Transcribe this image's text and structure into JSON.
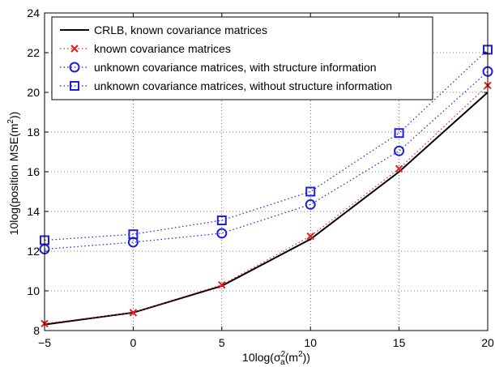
{
  "chart_data": {
    "type": "line",
    "x_label": "10log(σ",
    "x_label_sup": "2",
    "x_label_sub": "a",
    "x_label_tail": "(m",
    "x_label_tail_sup": "2",
    "x_label_end": "))",
    "y_label": "10log(position MSE(m",
    "y_label_sup": "2",
    "y_label_end": "))",
    "xlim": [
      -5,
      20
    ],
    "ylim": [
      8,
      24
    ],
    "x_ticks": [
      "−5",
      "0",
      "5",
      "10",
      "15",
      "20"
    ],
    "x_tick_values": [
      -5,
      0,
      5,
      10,
      15,
      20
    ],
    "y_ticks": [
      "8",
      "10",
      "12",
      "14",
      "16",
      "18",
      "20",
      "22",
      "24"
    ],
    "y_tick_values": [
      8,
      10,
      12,
      14,
      16,
      18,
      20,
      22,
      24
    ],
    "grid": true,
    "legend_position": "top-left",
    "x": [
      -5,
      0,
      5,
      10,
      15,
      20
    ],
    "series": [
      {
        "name": "CRLB, known covariance matrices",
        "values": [
          8.3,
          8.9,
          10.25,
          12.6,
          16.0,
          20.0
        ],
        "color": "#000000",
        "line": "solid",
        "marker": "none"
      },
      {
        "name": "known covariance matrices",
        "values": [
          8.35,
          8.9,
          10.3,
          12.75,
          16.15,
          20.35
        ],
        "color": "#e8191f",
        "line": "dotted",
        "marker": "x"
      },
      {
        "name": "unknown covariance matrices, with structure information",
        "values": [
          12.1,
          12.45,
          12.9,
          14.35,
          17.05,
          21.05
        ],
        "color": "#1f1fd6",
        "line": "dotted",
        "marker": "circle"
      },
      {
        "name": "unknown covariance matrices, without structure information",
        "values": [
          12.55,
          12.85,
          13.55,
          15.0,
          17.95,
          22.15
        ],
        "color": "#1f1fd6",
        "line": "dotted",
        "marker": "square"
      }
    ]
  }
}
